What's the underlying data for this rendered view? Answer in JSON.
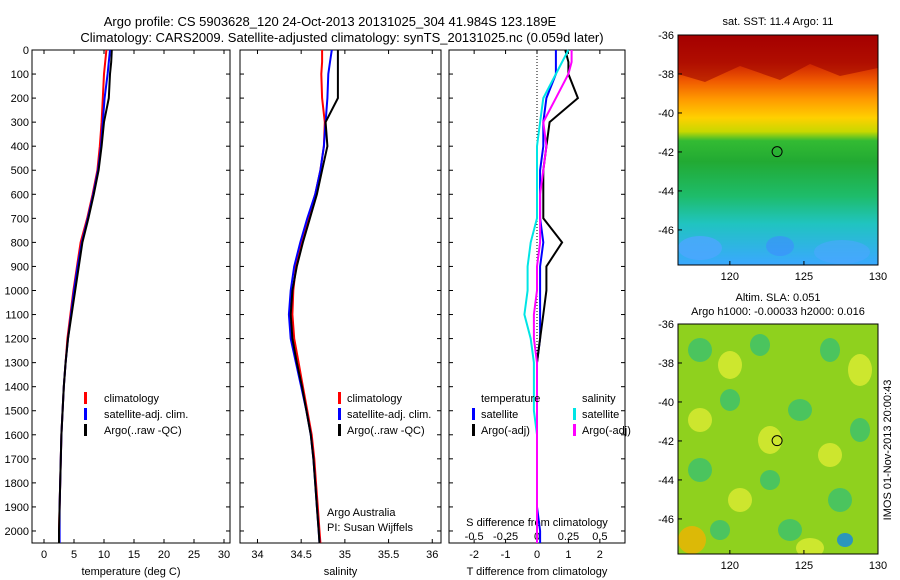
{
  "figure": {
    "title_line1": "Argo profile: CS 5903628_120 24-Oct-2013 20131025_304 41.984S 123.189E",
    "title_line2": "Climatology: CARS2009. Satellite-adjusted climatology: synTS_20131025.nc (0.059d later)",
    "credit_line1": "Argo Australia",
    "credit_line2": "PI: Susan Wijffels",
    "side_stamp": "IMOS 01-Nov-2013 20:00:43"
  },
  "colors": {
    "climatology": "#ff0000",
    "satellite": "#0000ff",
    "argo": "#000000",
    "salinity_satellite": "#00e5e5",
    "salinity_argo": "#ff00ff"
  },
  "legends": {
    "profile": [
      "climatology",
      "satellite-adj. clim.",
      "Argo(..raw -QC)"
    ],
    "diff_temperature_header": "temperature",
    "diff_salinity_header": "salinity",
    "diff_entries": [
      "satellite",
      "Argo(-adj)"
    ]
  },
  "map_titles": {
    "sst": "sat. SST: 11.4 Argo: 11",
    "sla_line1": "Altim. SLA: 0.051",
    "sla_line2": "Argo h1000: -0.00033 h2000: 0.016"
  },
  "chart_data": [
    {
      "type": "line",
      "id": "temperature",
      "xlabel": "temperature (deg C)",
      "ylabel": "",
      "xlim": [
        -2,
        31
      ],
      "ylim": [
        2050,
        0
      ],
      "xticks": [
        0,
        5,
        10,
        15,
        20,
        25,
        30
      ],
      "yticks": [
        0,
        100,
        200,
        300,
        400,
        500,
        600,
        700,
        800,
        900,
        1000,
        1100,
        1200,
        1300,
        1400,
        1500,
        1600,
        1700,
        1800,
        1900,
        2000
      ],
      "y": [
        0,
        50,
        100,
        200,
        300,
        400,
        500,
        600,
        700,
        800,
        900,
        1000,
        1100,
        1200,
        1300,
        1400,
        1500,
        1600,
        1700,
        1800,
        1900,
        2000,
        2050
      ],
      "series": [
        {
          "name": "climatology",
          "values": [
            10.4,
            10.2,
            10.0,
            9.8,
            9.6,
            9.3,
            8.9,
            8.1,
            7.2,
            6.1,
            5.5,
            4.9,
            4.4,
            3.9,
            3.6,
            3.3,
            3.1,
            2.9,
            2.8,
            2.7,
            2.6,
            2.5,
            2.5
          ]
        },
        {
          "name": "satellite-adj. clim.",
          "values": [
            11.0,
            10.8,
            10.6,
            10.1,
            9.8,
            9.5,
            9.0,
            8.2,
            7.3,
            6.3,
            5.6,
            5.0,
            4.5,
            4.0,
            3.6,
            3.3,
            3.1,
            2.9,
            2.8,
            2.7,
            2.6,
            2.6,
            2.6
          ]
        },
        {
          "name": "Argo(..raw -QC)",
          "values": [
            11.3,
            11.2,
            11.0,
            10.8,
            10.0,
            9.6,
            9.1,
            8.3,
            7.4,
            6.4,
            5.8,
            5.2,
            4.6,
            4.0,
            3.6,
            3.3,
            3.1,
            2.9,
            2.8,
            2.7,
            2.6,
            2.5,
            2.5
          ]
        }
      ]
    },
    {
      "type": "line",
      "id": "salinity",
      "xlabel": "salinity",
      "ylabel": "",
      "xlim": [
        33.8,
        36.1
      ],
      "ylim": [
        2050,
        0
      ],
      "xticks": [
        34,
        34.5,
        35,
        35.5,
        36
      ],
      "y": [
        0,
        50,
        100,
        200,
        300,
        400,
        500,
        600,
        700,
        800,
        900,
        1000,
        1100,
        1200,
        1300,
        1400,
        1500,
        1600,
        1700,
        1800,
        1900,
        2000,
        2050
      ],
      "series": [
        {
          "name": "climatology",
          "values": [
            34.74,
            34.74,
            34.73,
            34.74,
            34.77,
            34.76,
            34.72,
            34.66,
            34.58,
            34.5,
            34.44,
            34.41,
            34.4,
            34.42,
            34.47,
            34.52,
            34.57,
            34.62,
            34.65,
            34.67,
            34.69,
            34.71,
            34.72
          ]
        },
        {
          "name": "satellite-adj. clim.",
          "values": [
            34.85,
            34.83,
            34.81,
            34.8,
            34.78,
            34.76,
            34.72,
            34.66,
            34.57,
            34.49,
            34.42,
            34.38,
            34.36,
            34.38,
            34.44,
            34.5,
            34.56,
            34.61,
            34.64,
            34.66,
            34.68,
            34.7,
            34.71
          ]
        },
        {
          "name": "Argo(..raw -QC)",
          "values": [
            34.92,
            34.92,
            34.92,
            34.92,
            34.78,
            34.8,
            34.74,
            34.68,
            34.6,
            34.52,
            34.45,
            34.4,
            34.38,
            34.4,
            34.45,
            34.51,
            34.56,
            34.61,
            34.64,
            34.66,
            34.68,
            34.7,
            34.71
          ]
        }
      ]
    },
    {
      "type": "line",
      "id": "differences",
      "xlabel": "T difference from climatology",
      "xlabel_top": "S difference from climatology",
      "xlim": [
        -2.8,
        2.8
      ],
      "ylim": [
        2050,
        0
      ],
      "xticks": [
        -2,
        -1,
        0,
        1,
        2
      ],
      "xticks_s": [
        "-0.5",
        "-0.25",
        "0",
        "0.25",
        "0.5"
      ],
      "y": [
        0,
        50,
        100,
        200,
        300,
        400,
        500,
        600,
        700,
        800,
        900,
        1000,
        1100,
        1200,
        1300,
        1400,
        1500,
        1600,
        1700,
        1800,
        1900,
        2000,
        2050
      ],
      "series": [
        {
          "name": "temperature satellite",
          "values": [
            0.6,
            0.6,
            0.6,
            0.3,
            0.2,
            0.2,
            0.1,
            0.1,
            0.1,
            0.2,
            0.1,
            0.1,
            0.1,
            0.1,
            0.0,
            0.0,
            0.0,
            0.0,
            0.0,
            0.0,
            0.0,
            0.1,
            0.1
          ]
        },
        {
          "name": "temperature Argo(-adj)",
          "values": [
            0.9,
            1.0,
            1.0,
            1.3,
            0.4,
            0.3,
            0.2,
            0.2,
            0.2,
            0.8,
            0.3,
            0.3,
            0.2,
            0.1,
            0.0,
            0.0,
            0.0,
            0.0,
            0.0,
            0.0,
            0.0,
            0.0,
            0.0
          ]
        },
        {
          "name": "salinity satellite",
          "values": [
            1.0,
            0.8,
            0.6,
            0.2,
            0.1,
            0.0,
            0.0,
            0.0,
            0.0,
            -0.2,
            -0.3,
            -0.3,
            -0.4,
            -0.2,
            -0.1,
            -0.1,
            -0.1,
            0.0,
            0.0,
            0.0,
            0.0,
            0.0,
            0.0
          ]
        },
        {
          "name": "salinity Argo(-adj)",
          "values": [
            1.1,
            1.1,
            1.0,
            0.6,
            0.2,
            0.3,
            0.2,
            0.1,
            0.1,
            0.1,
            0.0,
            0.0,
            -0.1,
            -0.1,
            0.0,
            0.0,
            0.0,
            0.0,
            0.0,
            0.0,
            0.0,
            0.0,
            0.0
          ]
        }
      ]
    },
    {
      "type": "heatmap",
      "id": "sst-map",
      "title": "sat. SST: 11.4 Argo: 11",
      "xlim": [
        116.5,
        130
      ],
      "ylim": [
        -47.8,
        -36
      ],
      "xticks": [
        120,
        125,
        130
      ],
      "yticks": [
        -36,
        -38,
        -40,
        -42,
        -44,
        -46
      ],
      "marker": {
        "lon": 123.189,
        "lat": -41.984
      }
    },
    {
      "type": "heatmap",
      "id": "sla-map",
      "title": "Altim. SLA: 0.051",
      "xlim": [
        116.5,
        130
      ],
      "ylim": [
        -47.8,
        -36
      ],
      "xticks": [
        120,
        125,
        130
      ],
      "yticks": [
        -36,
        -38,
        -40,
        -42,
        -44,
        -46
      ],
      "marker": {
        "lon": 123.189,
        "lat": -41.984
      }
    }
  ]
}
